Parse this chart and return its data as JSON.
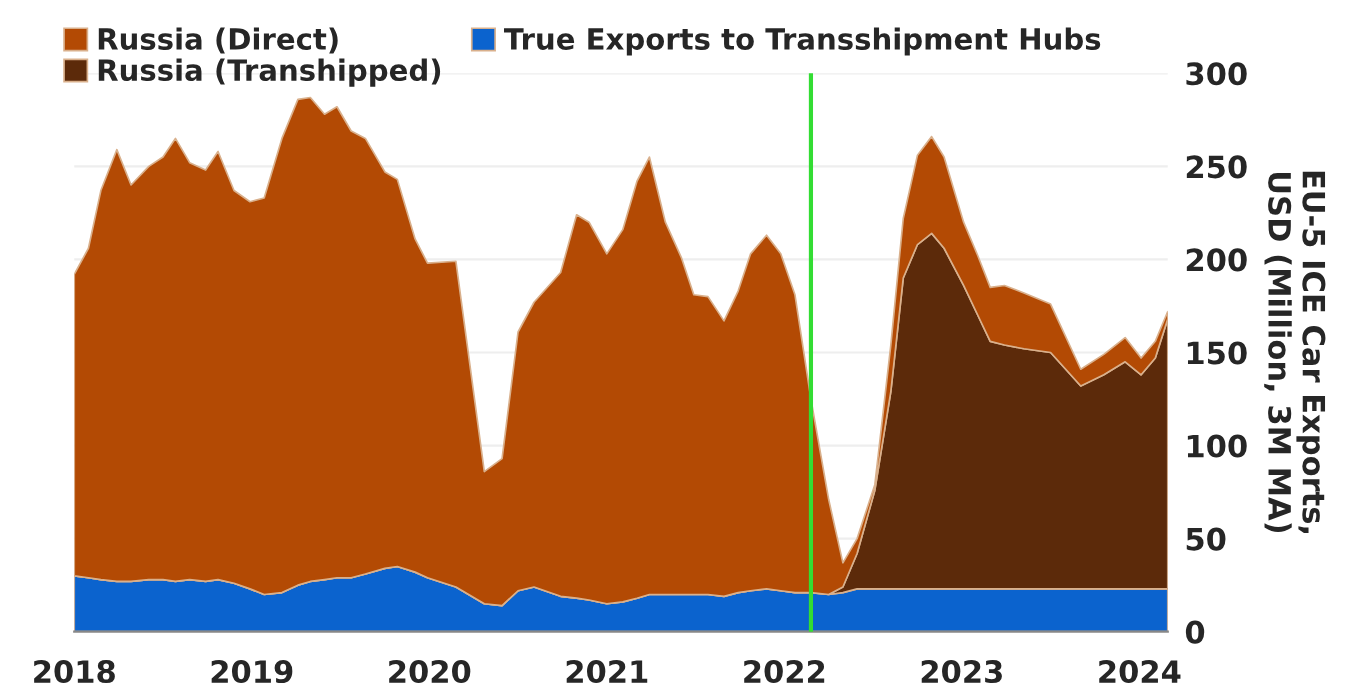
{
  "chart_data": {
    "type": "area",
    "stacked": true,
    "ylabel": "EU-5 ICE Car Exports,\nUSD (Million, 3M MA)",
    "x": [
      2018.0,
      2018.08,
      2018.15,
      2018.24,
      2018.32,
      2018.42,
      2018.5,
      2018.57,
      2018.65,
      2018.74,
      2018.81,
      2018.9,
      2018.99,
      2019.07,
      2019.17,
      2019.26,
      2019.33,
      2019.41,
      2019.48,
      2019.56,
      2019.64,
      2019.75,
      2019.82,
      2019.92,
      2019.99,
      2020.15,
      2020.31,
      2020.41,
      2020.5,
      2020.59,
      2020.74,
      2020.83,
      2020.9,
      2021.0,
      2021.09,
      2021.17,
      2021.24,
      2021.33,
      2021.42,
      2021.49,
      2021.57,
      2021.66,
      2021.74,
      2021.81,
      2021.9,
      2021.98,
      2022.06,
      2022.15,
      2022.25,
      2022.33,
      2022.41,
      2022.51,
      2022.6,
      2022.67,
      2022.75,
      2022.83,
      2022.9,
      2023.01,
      2023.09,
      2023.16,
      2023.24,
      2023.35,
      2023.5,
      2023.67,
      2023.8,
      2023.92,
      2024.01,
      2024.09,
      2024.16
    ],
    "series": [
      {
        "name": "True Exports to Transshipment Hubs",
        "color": "#0b63ce",
        "values": [
          30,
          29,
          28,
          27,
          27,
          28,
          28,
          27,
          28,
          27,
          28,
          26,
          23,
          20,
          21,
          25,
          27,
          28,
          29,
          29,
          31,
          34,
          35,
          32,
          29,
          24,
          15,
          14,
          22,
          24,
          19,
          18,
          17,
          15,
          16,
          18,
          20,
          20,
          20,
          20,
          20,
          19,
          21,
          22,
          23,
          22,
          21,
          21,
          20,
          21,
          23,
          23,
          23,
          23,
          23,
          23,
          23,
          23,
          23,
          23,
          23,
          23,
          23,
          23,
          23,
          23,
          23,
          23,
          23
        ]
      },
      {
        "name": "Russia (Transhipped)",
        "color": "#5c2a0a",
        "values": [
          0,
          0,
          0,
          0,
          0,
          0,
          0,
          0,
          0,
          0,
          0,
          0,
          0,
          0,
          0,
          0,
          0,
          0,
          0,
          0,
          0,
          0,
          0,
          0,
          0,
          0,
          0,
          0,
          0,
          0,
          0,
          0,
          0,
          0,
          0,
          0,
          0,
          0,
          0,
          0,
          0,
          0,
          0,
          0,
          0,
          0,
          0,
          0,
          0,
          3,
          19,
          53,
          106,
          167,
          185,
          191,
          183,
          163,
          147,
          133,
          131,
          129,
          127,
          109,
          115,
          122,
          115,
          124,
          145
        ]
      },
      {
        "name": "Russia (Direct)",
        "color": "#b34a04",
        "values": [
          162,
          177,
          209,
          232,
          213,
          222,
          227,
          238,
          224,
          221,
          230,
          211,
          208,
          213,
          244,
          261,
          260,
          250,
          253,
          240,
          234,
          213,
          208,
          179,
          169,
          175,
          71,
          79,
          139,
          153,
          174,
          206,
          203,
          188,
          200,
          224,
          235,
          200,
          181,
          161,
          160,
          148,
          162,
          181,
          190,
          181,
          160,
          104,
          51,
          13,
          8,
          3,
          25,
          32,
          48,
          52,
          49,
          34,
          32,
          29,
          32,
          30,
          26,
          9,
          11,
          13,
          9,
          9,
          4
        ]
      }
    ],
    "xlim": [
      2018.0,
      2024.16
    ],
    "xticks": [
      2018,
      2019,
      2020,
      2021,
      2022,
      2023,
      2024
    ],
    "ylim": [
      0,
      300
    ],
    "yticks": [
      0,
      50,
      100,
      150,
      200,
      250,
      300
    ],
    "ref_lines": [
      {
        "axis": "x",
        "value": 2022.15,
        "color": "#33dd33"
      }
    ],
    "grid": "y",
    "legend": "top left"
  }
}
